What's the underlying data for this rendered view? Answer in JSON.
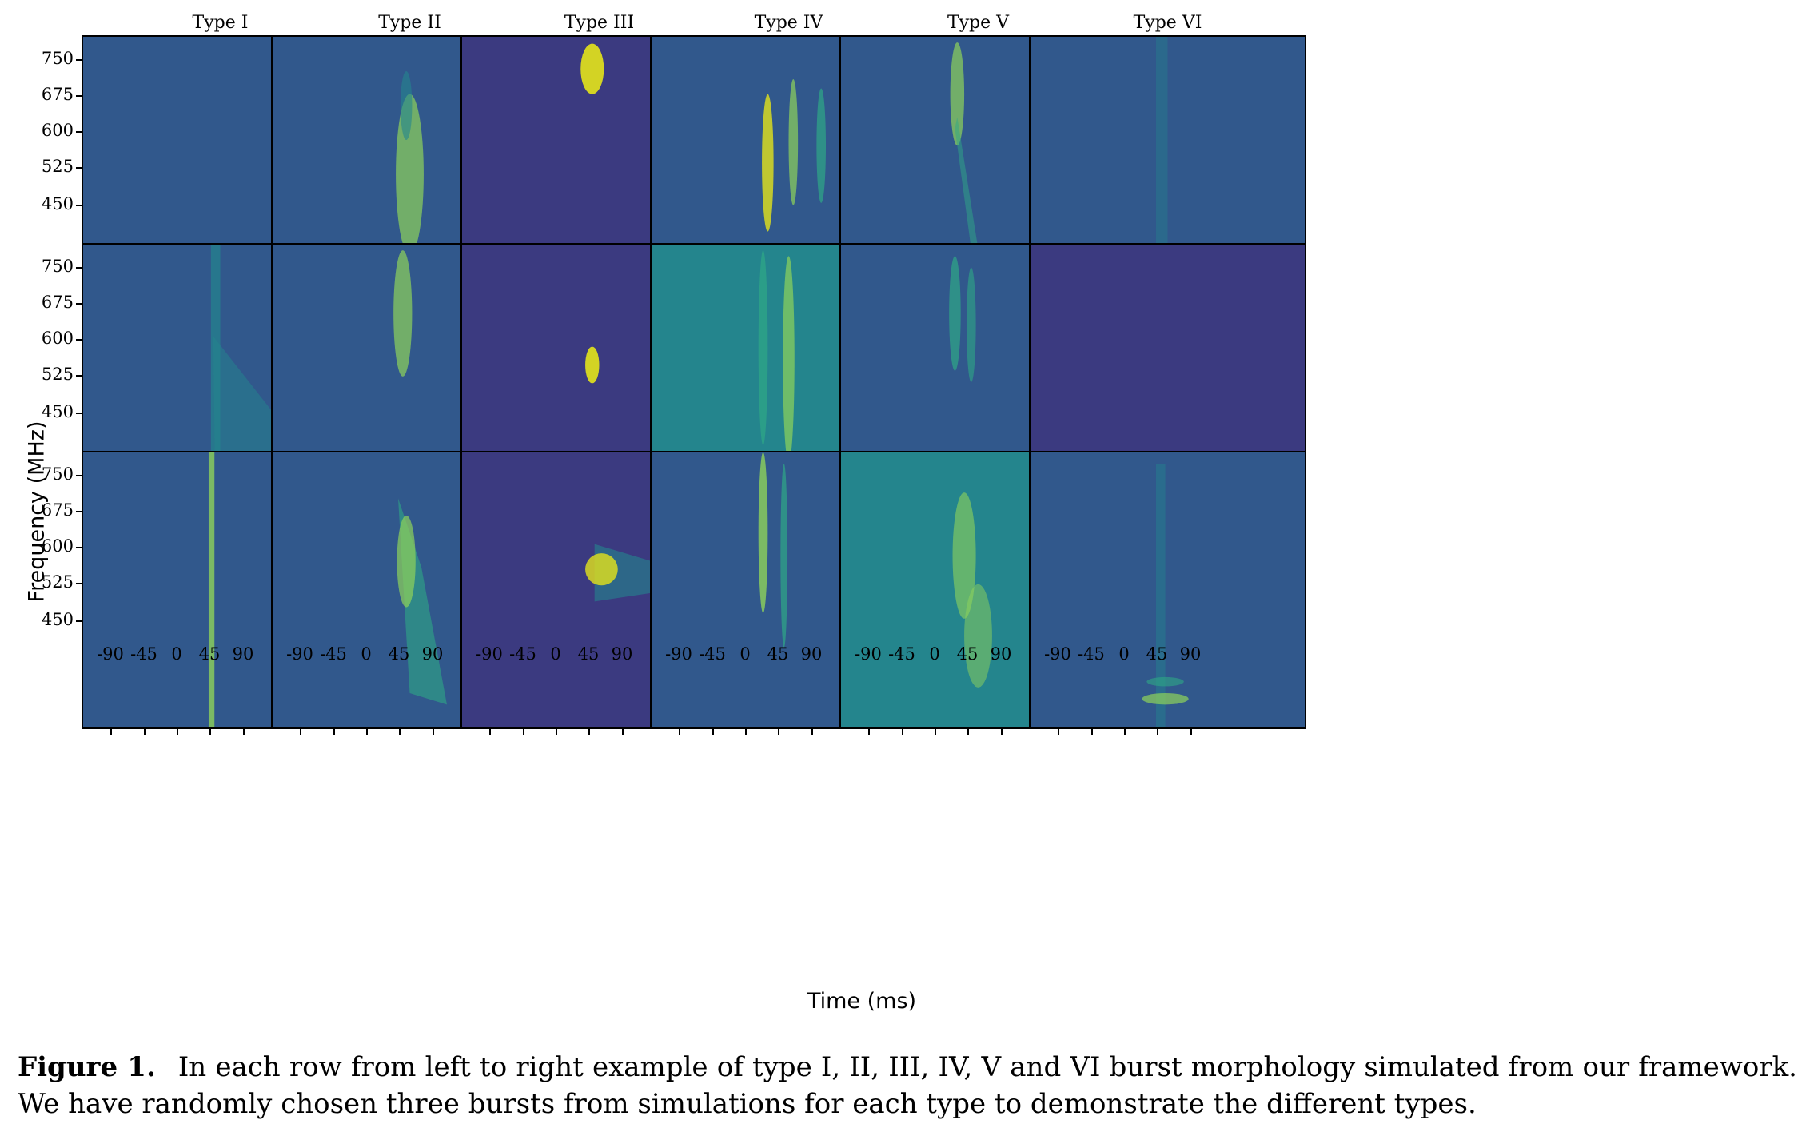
{
  "figure": {
    "column_titles": [
      "Type I",
      "Type II",
      "Type III",
      "Type IV",
      "Type V",
      "Type VI"
    ],
    "y_axis_label": "Frequency (MHz)",
    "x_axis_label": "Time (ms)",
    "y_ticks": [
      "750",
      "675",
      "600",
      "525",
      "450"
    ],
    "x_ticks": [
      "-90",
      "-45",
      "0",
      "45",
      "90"
    ],
    "panels_rows": 3,
    "colormap": [
      "#3b3a80",
      "#31588c",
      "#24858d",
      "#2fa886",
      "#8fd35a",
      "#e4e41a"
    ]
  },
  "caption": {
    "label": "Figure 1.",
    "text": "In each row from left to right example of type I, II, III, IV, V and VI burst morphology simulated from our framework. We have randomly chosen three bursts from simulations for each type to demonstrate the different types."
  }
}
